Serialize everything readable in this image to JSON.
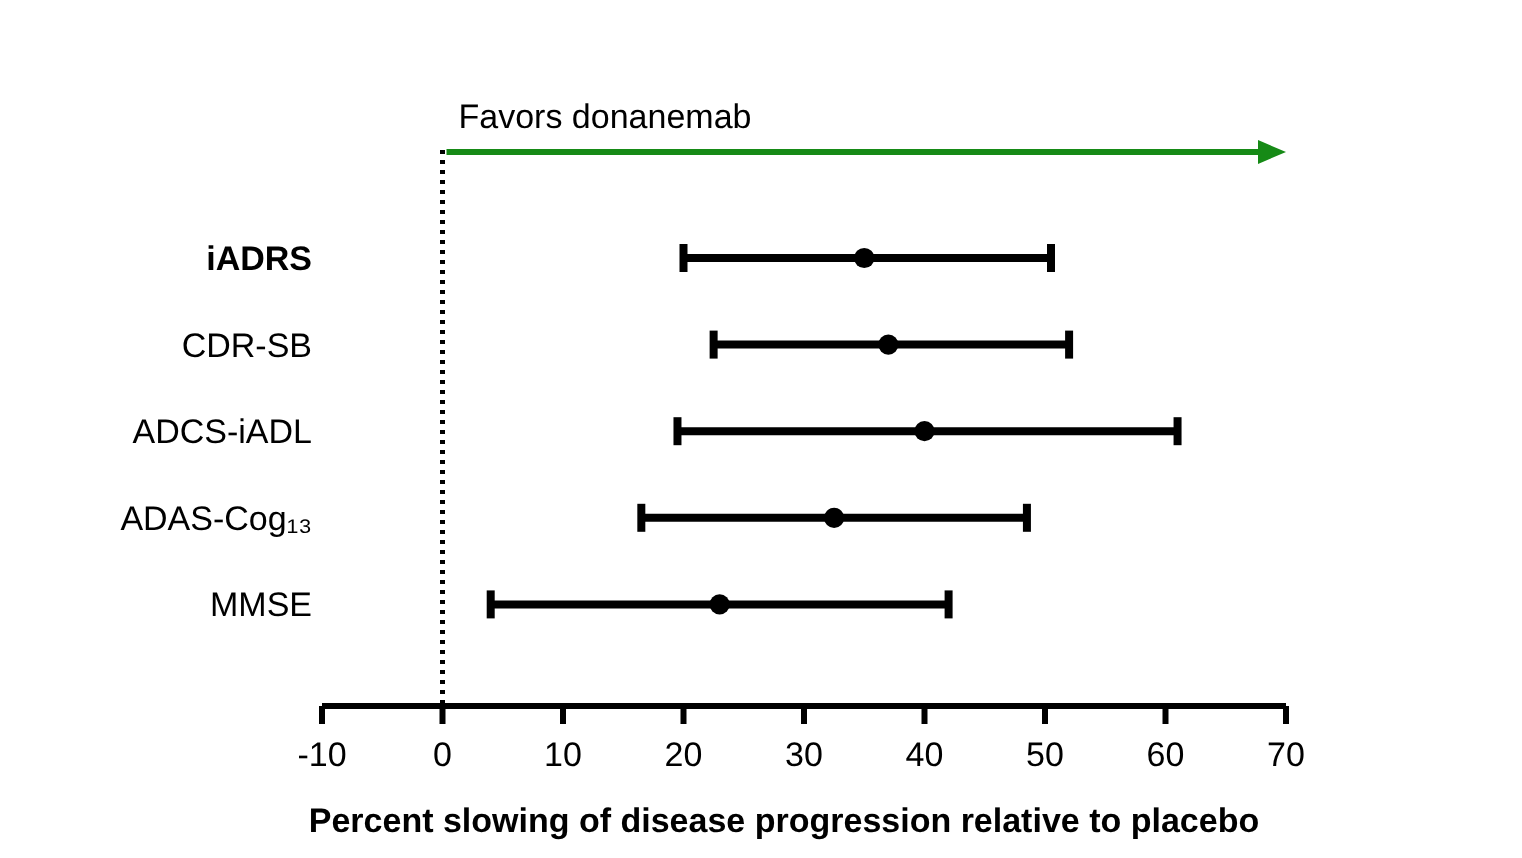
{
  "chart_data": {
    "type": "scatter",
    "orientation": "horizontal",
    "xlabel": "Percent slowing of disease progression relative to placebo",
    "categories": [
      "iADRS",
      "CDR-SB",
      "ADCS-iADL",
      "ADAS-Cog₁₃",
      "MMSE"
    ],
    "values": [
      35,
      37,
      40,
      32.5,
      23
    ],
    "errors": [
      [
        20,
        50.5
      ],
      [
        22.5,
        52
      ],
      [
        19.5,
        61
      ],
      [
        16.5,
        48.5
      ],
      [
        4,
        42
      ]
    ],
    "color": "#000000",
    "marker": "circle",
    "xlim": [
      -10,
      70
    ],
    "xticks": [
      -10,
      0,
      10,
      20,
      30,
      40,
      50,
      60,
      70
    ],
    "ref_lines": [
      {
        "axis": "x",
        "value": 0,
        "line_style": "dotted",
        "color": "#000000"
      }
    ],
    "annotations": [
      "Favors donanemab"
    ],
    "grid": false
  }
}
